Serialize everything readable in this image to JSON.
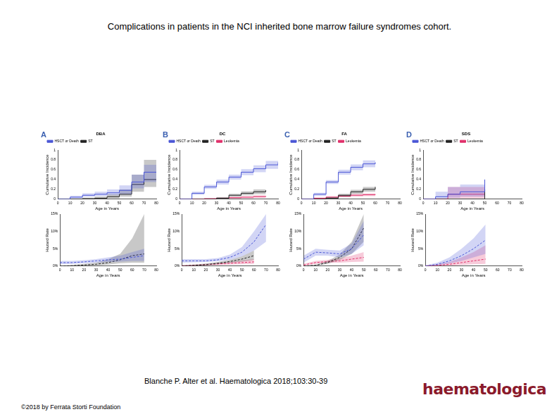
{
  "header": {
    "title": "Complications in patients in the NCI inherited bone marrow failure syndromes cohort."
  },
  "footer": {
    "citation": "Blanche P. Alter et al. Haematologica 2018;103:30-39",
    "copyright": "©2018 by Ferrata Storti Foundation",
    "logo": "haematologica"
  },
  "chart_data": [
    {
      "type": "line",
      "panel": "A",
      "title": "DBA",
      "x_label": "Age in Years",
      "y_label": "Cumulative Incidence",
      "x": [
        0,
        10,
        20,
        30,
        40,
        50,
        60,
        70,
        80
      ],
      "xlim": [
        0,
        80
      ],
      "xticks": [
        0,
        10,
        20,
        30,
        40,
        50,
        60,
        70,
        80
      ],
      "ylim": [
        0,
        1
      ],
      "yticks": [
        0,
        0.2,
        0.4,
        0.6,
        0.8,
        1
      ],
      "grid": false,
      "line_style": "step",
      "legend": "top-left",
      "series": [
        {
          "name": "HSCT or Death",
          "color": "#4a56d6",
          "values": [
            0,
            0.04,
            0.08,
            0.1,
            0.13,
            0.18,
            0.35,
            0.55,
            0.55
          ],
          "lower": [
            0,
            0.02,
            0.05,
            0.06,
            0.08,
            0.1,
            0.22,
            0.35,
            0.35
          ],
          "upper": [
            0,
            0.07,
            0.12,
            0.15,
            0.2,
            0.28,
            0.5,
            0.7,
            0.7
          ]
        },
        {
          "name": "ST",
          "color": "#222222",
          "values": [
            0,
            0,
            0.01,
            0.02,
            0.05,
            0.1,
            0.3,
            0.4,
            0.4
          ],
          "lower": [
            0,
            0,
            0,
            0.01,
            0.02,
            0.05,
            0.15,
            0.25,
            0.25
          ],
          "upper": [
            0,
            0.01,
            0.03,
            0.05,
            0.1,
            0.2,
            0.5,
            0.8,
            0.8
          ]
        }
      ]
    },
    {
      "type": "line",
      "panel": "B",
      "title": "DC",
      "x_label": "Age in Years",
      "y_label": "Cumulative Incidence",
      "x": [
        0,
        10,
        20,
        30,
        40,
        50,
        60,
        70,
        80
      ],
      "xlim": [
        0,
        80
      ],
      "xticks": [
        0,
        10,
        20,
        30,
        40,
        50,
        60,
        70,
        80
      ],
      "ylim": [
        0,
        1
      ],
      "yticks": [
        0,
        0.2,
        0.4,
        0.6,
        0.8,
        1
      ],
      "grid": false,
      "line_style": "step",
      "legend": "top-left",
      "series": [
        {
          "name": "HSCT or Death",
          "color": "#4a56d6",
          "values": [
            0,
            0.12,
            0.25,
            0.35,
            0.45,
            0.55,
            0.62,
            0.7,
            0.75
          ],
          "lower": [
            0,
            0.09,
            0.21,
            0.3,
            0.4,
            0.49,
            0.55,
            0.62,
            0.62
          ],
          "upper": [
            0,
            0.15,
            0.29,
            0.4,
            0.5,
            0.61,
            0.69,
            0.78,
            0.85
          ]
        },
        {
          "name": "ST",
          "color": "#222222",
          "values": [
            0,
            0,
            0,
            0.02,
            0.08,
            0.12,
            0.15,
            0.18,
            null
          ],
          "lower": [
            0,
            0,
            0,
            0.01,
            0.05,
            0.08,
            0.1,
            0.12,
            null
          ],
          "upper": [
            0,
            0,
            0.01,
            0.04,
            0.11,
            0.16,
            0.2,
            0.25,
            null
          ]
        },
        {
          "name": "Leukemia",
          "color": "#e0306a",
          "values": [
            0,
            0,
            0.01,
            0.02,
            0.03,
            0.04,
            0.05,
            0.06,
            null
          ],
          "lower": [
            0,
            0,
            0,
            0.01,
            0.01,
            0.02,
            0.03,
            0.03,
            null
          ],
          "upper": [
            0,
            0.01,
            0.02,
            0.03,
            0.05,
            0.06,
            0.08,
            0.1,
            null
          ]
        }
      ]
    },
    {
      "type": "line",
      "panel": "C",
      "title": "FA",
      "x_label": "Age in Years",
      "y_label": "Cumulative Incidence",
      "x": [
        0,
        10,
        20,
        30,
        40,
        50,
        60,
        70,
        80
      ],
      "xlim": [
        0,
        80
      ],
      "xticks": [
        0,
        10,
        20,
        30,
        40,
        50,
        60,
        70,
        80
      ],
      "ylim": [
        0,
        1
      ],
      "yticks": [
        0,
        0.2,
        0.4,
        0.6,
        0.8,
        1
      ],
      "grid": false,
      "line_style": "step",
      "legend": "top-left",
      "series": [
        {
          "name": "HSCT or Death",
          "color": "#4a56d6",
          "values": [
            0,
            0.1,
            0.35,
            0.55,
            0.65,
            0.72,
            0.75,
            null,
            null
          ],
          "lower": [
            0,
            0.07,
            0.31,
            0.5,
            0.59,
            0.65,
            0.66,
            null,
            null
          ],
          "upper": [
            0,
            0.13,
            0.39,
            0.6,
            0.71,
            0.79,
            0.84,
            null,
            null
          ]
        },
        {
          "name": "ST",
          "color": "#222222",
          "values": [
            0,
            0,
            0.02,
            0.08,
            0.15,
            0.2,
            0.25,
            null,
            null
          ],
          "lower": [
            0,
            0,
            0.01,
            0.05,
            0.11,
            0.15,
            0.19,
            null,
            null
          ],
          "upper": [
            0,
            0.01,
            0.04,
            0.11,
            0.19,
            0.25,
            0.31,
            null,
            null
          ]
        },
        {
          "name": "Leukemia",
          "color": "#e0306a",
          "values": [
            0,
            0.02,
            0.04,
            0.06,
            0.08,
            0.09,
            0.1,
            null,
            null
          ],
          "lower": [
            0,
            0.01,
            0.02,
            0.04,
            0.05,
            0.06,
            0.07,
            null,
            null
          ],
          "upper": [
            0,
            0.03,
            0.06,
            0.08,
            0.11,
            0.12,
            0.13,
            null,
            null
          ]
        }
      ]
    },
    {
      "type": "line",
      "panel": "D",
      "title": "SDS",
      "x_label": "Age in Years",
      "y_label": "Cumulative Incidence",
      "x": [
        0,
        10,
        20,
        30,
        40,
        50,
        60,
        70,
        80
      ],
      "xlim": [
        0,
        80
      ],
      "xticks": [
        0,
        10,
        20,
        30,
        40,
        50,
        60,
        70,
        80
      ],
      "ylim": [
        0,
        1
      ],
      "yticks": [
        0,
        0.2,
        0.4,
        0.6,
        0.8,
        1
      ],
      "grid": false,
      "line_style": "step",
      "legend": "top-left",
      "series": [
        {
          "name": "HSCT or Death",
          "color": "#4a56d6",
          "values": [
            0,
            0.05,
            0.1,
            0.15,
            0.15,
            0.4,
            null,
            null,
            null
          ],
          "lower": [
            0,
            0.01,
            0.03,
            0.05,
            0.05,
            0.15,
            null,
            null,
            null
          ],
          "upper": [
            0,
            0.15,
            0.25,
            0.3,
            0.3,
            1,
            null,
            null,
            null
          ]
        },
        {
          "name": "ST",
          "color": "#222222",
          "values": [
            0,
            0,
            0,
            0,
            0,
            0.2,
            null,
            null,
            null
          ],
          "lower": [
            0,
            0,
            0,
            0,
            0,
            0,
            null,
            null,
            null
          ],
          "upper": [
            0,
            0,
            0,
            0,
            0,
            1,
            null,
            null,
            null
          ]
        },
        {
          "name": "Leukemia",
          "color": "#e0306a",
          "values": [
            0,
            0,
            0.1,
            0.1,
            0.1,
            0.1,
            null,
            null,
            null
          ],
          "lower": [
            0,
            0,
            0.02,
            0.02,
            0.02,
            0.02,
            null,
            null,
            null
          ],
          "upper": [
            0,
            0,
            0.25,
            0.25,
            0.25,
            0.25,
            null,
            null,
            null
          ]
        }
      ]
    },
    {
      "type": "line",
      "x_label": "Age in Years",
      "y_label": "Hazard Rate",
      "x": [
        0,
        10,
        20,
        30,
        40,
        50,
        60,
        70,
        80
      ],
      "xlim": [
        0,
        80
      ],
      "xticks": [
        0,
        10,
        20,
        30,
        40,
        50,
        60,
        70,
        80
      ],
      "ylim": [
        0,
        15
      ],
      "yticks": [
        {
          "value": 0,
          "label": "0%"
        },
        {
          "value": 5,
          "label": "5%"
        },
        {
          "value": 10,
          "label": "10%"
        },
        {
          "value": 15,
          "label": "15%"
        }
      ],
      "grid": false,
      "line_style": "dashed",
      "series": [
        {
          "name": "HSCT or Death",
          "color": "#4a56d6",
          "values": [
            1,
            1,
            1.2,
            1.5,
            1.8,
            2,
            2.5,
            3,
            null
          ],
          "lower": [
            0.5,
            0.6,
            0.8,
            1,
            1.2,
            1.3,
            1.5,
            1.5,
            null
          ],
          "upper": [
            1.5,
            1.5,
            1.7,
            2,
            2.5,
            3,
            4,
            5,
            null
          ]
        },
        {
          "name": "ST",
          "color": "#222222",
          "values": [
            0,
            0.1,
            0.3,
            0.5,
            1,
            1.8,
            3,
            3.5,
            null
          ],
          "lower": [
            0,
            0,
            0.1,
            0.2,
            0.4,
            0.8,
            1,
            1,
            null
          ],
          "upper": [
            0.1,
            0.3,
            0.6,
            1,
            2,
            3.5,
            8,
            15,
            null
          ]
        }
      ]
    },
    {
      "type": "line",
      "x_label": "Age in Years",
      "y_label": "Hazard Rate",
      "x": [
        0,
        10,
        20,
        30,
        40,
        50,
        60,
        70,
        80
      ],
      "xlim": [
        0,
        80
      ],
      "xticks": [
        0,
        10,
        20,
        30,
        40,
        50,
        60,
        70,
        80
      ],
      "ylim": [
        0,
        15
      ],
      "yticks": [
        {
          "value": 0,
          "label": "0%"
        },
        {
          "value": 5,
          "label": "5%"
        },
        {
          "value": 10,
          "label": "10%"
        },
        {
          "value": 15,
          "label": "15%"
        }
      ],
      "grid": false,
      "line_style": "dashed",
      "series": [
        {
          "name": "HSCT or Death",
          "color": "#4a56d6",
          "values": [
            1.5,
            1.5,
            1.5,
            1.8,
            2.5,
            4,
            7,
            12,
            null
          ],
          "lower": [
            1,
            1.1,
            1.2,
            1.4,
            1.8,
            2.8,
            4.5,
            7,
            null
          ],
          "upper": [
            2,
            2,
            2,
            2.3,
            3.3,
            5.5,
            10,
            15,
            null
          ]
        },
        {
          "name": "ST",
          "color": "#222222",
          "values": [
            0,
            0.2,
            0.4,
            0.8,
            1.3,
            2,
            3,
            null,
            null
          ],
          "lower": [
            0,
            0.1,
            0.2,
            0.5,
            0.9,
            1.3,
            1.8,
            null,
            null
          ],
          "upper": [
            0.2,
            0.4,
            0.7,
            1.2,
            1.8,
            2.8,
            4.5,
            null,
            null
          ]
        },
        {
          "name": "Leukemia",
          "color": "#e0306a",
          "values": [
            0,
            0.2,
            0.4,
            0.6,
            0.8,
            1,
            1.2,
            null,
            null
          ],
          "lower": [
            0,
            0.1,
            0.2,
            0.3,
            0.4,
            0.5,
            0.6,
            null,
            null
          ],
          "upper": [
            0.3,
            0.4,
            0.6,
            0.9,
            1.2,
            1.6,
            2,
            null,
            null
          ]
        }
      ]
    },
    {
      "type": "line",
      "x_label": "Age in Years",
      "y_label": "Hazard Rate",
      "x": [
        0,
        10,
        20,
        30,
        40,
        50,
        60,
        70,
        80
      ],
      "xlim": [
        0,
        80
      ],
      "xticks": [
        0,
        10,
        20,
        30,
        40,
        50,
        60,
        70,
        80
      ],
      "ylim": [
        0,
        15
      ],
      "yticks": [
        {
          "value": 0,
          "label": "0%"
        },
        {
          "value": 5,
          "label": "5%"
        },
        {
          "value": 10,
          "label": "10%"
        },
        {
          "value": 15,
          "label": "15%"
        }
      ],
      "grid": false,
      "line_style": "dashed",
      "series": [
        {
          "name": "HSCT or Death",
          "color": "#4a56d6",
          "values": [
            2,
            4,
            3.8,
            3.5,
            5,
            9,
            null,
            null,
            null
          ],
          "lower": [
            1,
            3,
            3,
            2.5,
            3.5,
            6,
            null,
            null,
            null
          ],
          "upper": [
            3,
            5,
            4.7,
            4.5,
            6.5,
            13,
            null,
            null,
            null
          ]
        },
        {
          "name": "ST",
          "color": "#222222",
          "values": [
            0,
            0.2,
            1,
            2.5,
            5,
            11,
            null,
            null,
            null
          ],
          "lower": [
            0,
            0.1,
            0.6,
            1.8,
            3.5,
            7,
            null,
            null,
            null
          ],
          "upper": [
            0.1,
            0.4,
            1.5,
            3.3,
            7,
            15,
            null,
            null,
            null
          ]
        },
        {
          "name": "Leukemia",
          "color": "#e0306a",
          "values": [
            0.3,
            1,
            1.3,
            1.5,
            2,
            2.5,
            null,
            null,
            null
          ],
          "lower": [
            0.1,
            0.6,
            0.9,
            1,
            1.2,
            1.3,
            null,
            null,
            null
          ],
          "upper": [
            0.6,
            1.5,
            1.8,
            2.2,
            3,
            4,
            null,
            null,
            null
          ]
        }
      ]
    },
    {
      "type": "line",
      "x_label": "Age in Years",
      "y_label": "Hazard Rate",
      "x": [
        0,
        10,
        20,
        30,
        40,
        50,
        60,
        70,
        80
      ],
      "xlim": [
        0,
        80
      ],
      "xticks": [
        0,
        10,
        20,
        30,
        40,
        50,
        60,
        70,
        80
      ],
      "ylim": [
        0,
        15
      ],
      "yticks": [
        {
          "value": 0,
          "label": "0%"
        },
        {
          "value": 5,
          "label": "5%"
        },
        {
          "value": 10,
          "label": "10%"
        },
        {
          "value": 15,
          "label": "15%"
        }
      ],
      "grid": false,
      "line_style": "dashed",
      "series": [
        {
          "name": "HSCT or Death",
          "color": "#4a56d6",
          "values": [
            0,
            0.5,
            1.5,
            3,
            5,
            7.5,
            null,
            null,
            null
          ],
          "lower": [
            0,
            0.2,
            0.7,
            1.5,
            2.5,
            3.5,
            null,
            null,
            null
          ],
          "upper": [
            0.2,
            1,
            2.5,
            5,
            8,
            12,
            null,
            null,
            null
          ]
        },
        {
          "name": "Leukemia",
          "color": "#e0306a",
          "values": [
            0,
            0.2,
            0.5,
            1,
            1.5,
            2,
            null,
            null,
            null
          ],
          "lower": [
            0,
            0,
            0.1,
            0.3,
            0.5,
            0.6,
            null,
            null,
            null
          ],
          "upper": [
            0.2,
            0.5,
            1.2,
            2.5,
            4,
            6,
            null,
            null,
            null
          ]
        }
      ]
    }
  ]
}
